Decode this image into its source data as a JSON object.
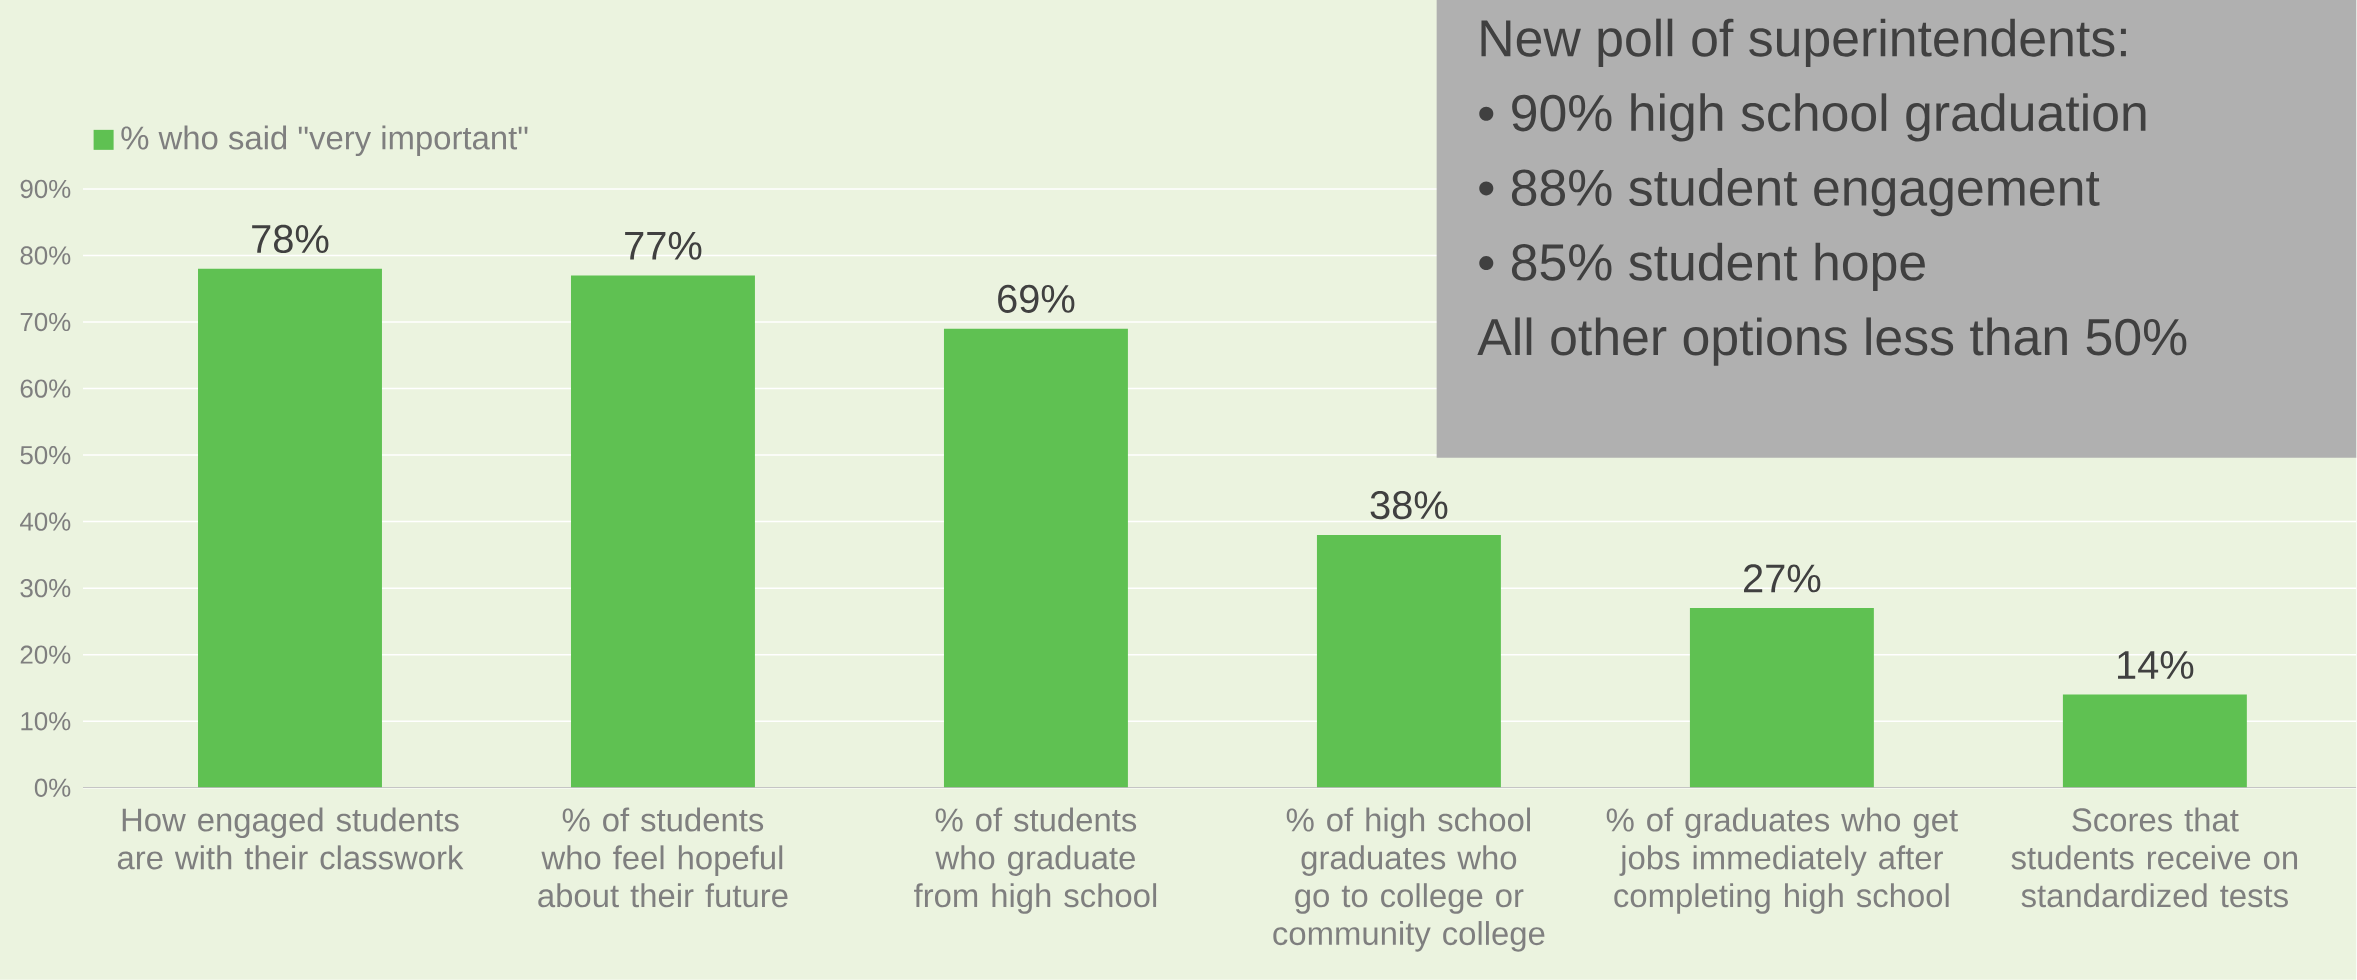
{
  "chart_data": {
    "type": "bar",
    "categories": [
      "How engaged students are with their classwork",
      "% of students who feel hopeful about their future",
      "% of students who graduate from high school",
      "% of high school graduates who go to college or community college",
      "% of graduates who get jobs immediately after completing high school",
      "Scores that students receive on standardized tests"
    ],
    "series": [
      {
        "name": "% who said \"very important\"",
        "color": "#5fc152",
        "values": [
          78,
          77,
          69,
          38,
          27,
          14
        ],
        "value_labels": [
          "78%",
          "77%",
          "69%",
          "38%",
          "27%",
          "14%"
        ]
      }
    ],
    "ylim": [
      0,
      90
    ],
    "yticks": [
      {
        "value": 0,
        "label": "0%"
      },
      {
        "value": 10,
        "label": "10%"
      },
      {
        "value": 20,
        "label": "20%"
      },
      {
        "value": 30,
        "label": "30%"
      },
      {
        "value": 40,
        "label": "40%"
      },
      {
        "value": 50,
        "label": "50%"
      },
      {
        "value": 60,
        "label": "60%"
      },
      {
        "value": 70,
        "label": "70%"
      },
      {
        "value": 80,
        "label": "80%"
      },
      {
        "value": 90,
        "label": "90%"
      }
    ],
    "grid": "y",
    "legend": "top left",
    "annotations": [
      "New poll of superintendents:",
      "•  90% high school graduation",
      "•  88% student engagement",
      "•  85% student hope",
      "All other options less than 50%"
    ]
  }
}
